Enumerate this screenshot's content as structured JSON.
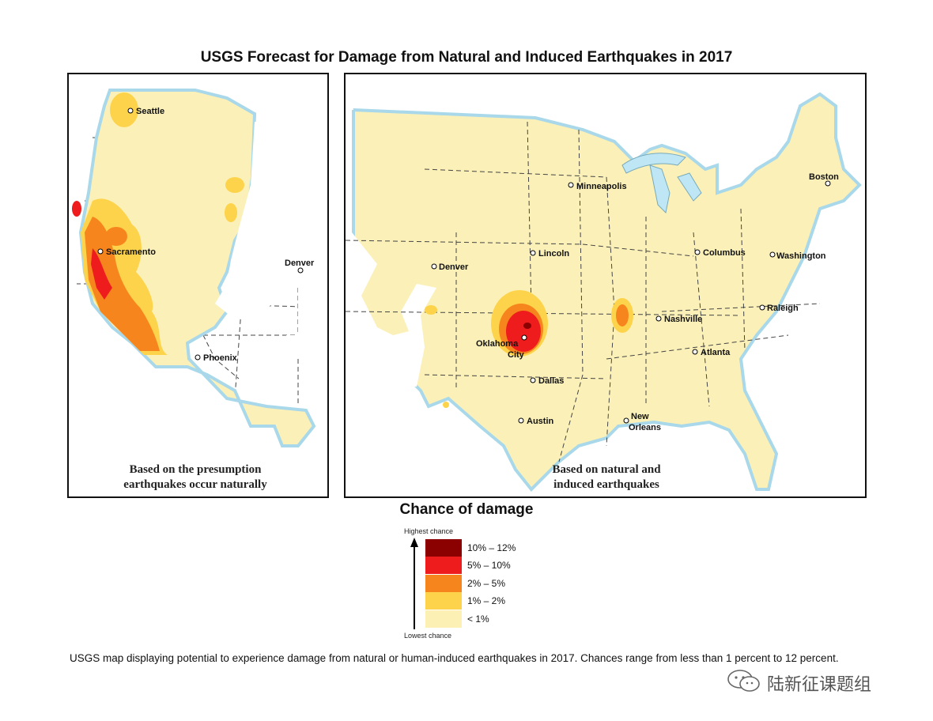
{
  "title": "USGS Forecast for Damage from Natural and Induced Earthquakes in 2017",
  "west_panel": {
    "caption_line1": "Based on the presumption",
    "caption_line2": "earthquakes occur naturally",
    "cities": [
      "Seattle",
      "Sacramento",
      "Denver",
      "Phoenix"
    ]
  },
  "us_panel": {
    "caption_line1": "Based on natural and",
    "caption_line2": "induced earthquakes",
    "cities": [
      "Minneapolis",
      "Boston",
      "Denver",
      "Lincoln",
      "Columbus",
      "Washington",
      "Nashville",
      "Raleigh",
      "Oklahoma",
      "City",
      "Atlanta",
      "Dallas",
      "Austin",
      "New",
      "Orleans"
    ]
  },
  "legend": {
    "title": "Chance of damage",
    "top_label": "Highest chance",
    "bottom_label": "Lowest chance",
    "items": [
      {
        "label": "10% – 12%",
        "color": "#8b0000"
      },
      {
        "label": "5% – 10%",
        "color": "#ee1c1c"
      },
      {
        "label": "2% – 5%",
        "color": "#f7851e"
      },
      {
        "label": "1% – 2%",
        "color": "#fdd34b"
      },
      {
        "label": "< 1%",
        "color": "#fdf0b4"
      }
    ]
  },
  "footer": "USGS map displaying potential to experience damage from natural or human-induced earthquakes in 2017. Chances range from less than 1 percent to 12 percent.",
  "watermark": "陆新征课题组",
  "colors": {
    "base": "#fbf1b8",
    "orange": "#f7851e",
    "red": "#ee1c1c",
    "darkred": "#8b0000",
    "yellow": "#fdd34b",
    "water": "#bfe6f4"
  }
}
